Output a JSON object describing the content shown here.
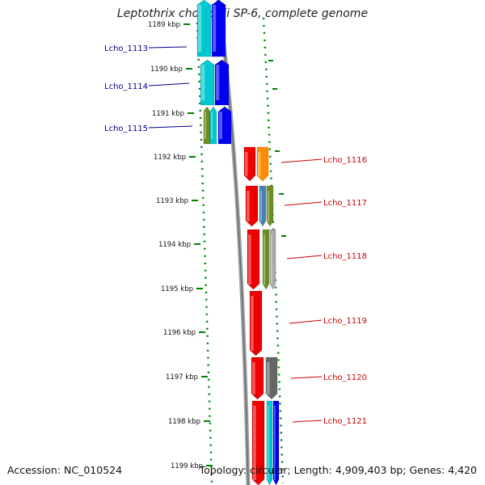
{
  "title": "Leptothrix cholodnii SP-6, complete genome",
  "accession_text": "Accession: NC_010524",
  "summary_text": "Topology: circular; Length: 4,909,403 bp; Genes: 4,420",
  "ruler_ticks": [
    "1189 kbp",
    "1190 kbp",
    "1191 kbp",
    "1192 kbp",
    "1193 kbp",
    "1194 kbp",
    "1195 kbp",
    "1196 kbp",
    "1197 kbp",
    "1198 kbp",
    "1199 kbp"
  ],
  "colors": {
    "left_gene_label": "#00008b",
    "right_gene_label": "#cc0000",
    "left_strand_gene": "#0000ee",
    "right_strand_gene": "#ee0000",
    "dotted_track": "#008000",
    "backbone": "#888888"
  },
  "left_genes": [
    {
      "label": "Lcho_1113",
      "features": [
        "cyan",
        "blue"
      ]
    },
    {
      "label": "Lcho_1114",
      "features": [
        "cyan",
        "blue"
      ]
    },
    {
      "label": "Lcho_1115",
      "features": [
        "olive",
        "cyan",
        "blue"
      ]
    }
  ],
  "right_genes": [
    {
      "label": "Lcho_1116",
      "features": [
        "red",
        "orange"
      ]
    },
    {
      "label": "Lcho_1117",
      "features": [
        "red",
        "steelblue",
        "olive"
      ]
    },
    {
      "label": "Lcho_1118",
      "features": [
        "red",
        "olive",
        "gray"
      ]
    },
    {
      "label": "Lcho_1119",
      "features": [
        "red"
      ]
    },
    {
      "label": "Lcho_1120",
      "features": [
        "red",
        "darkgray"
      ]
    },
    {
      "label": "Lcho_1121",
      "features": [
        "red",
        "cyan",
        "blue"
      ]
    }
  ]
}
